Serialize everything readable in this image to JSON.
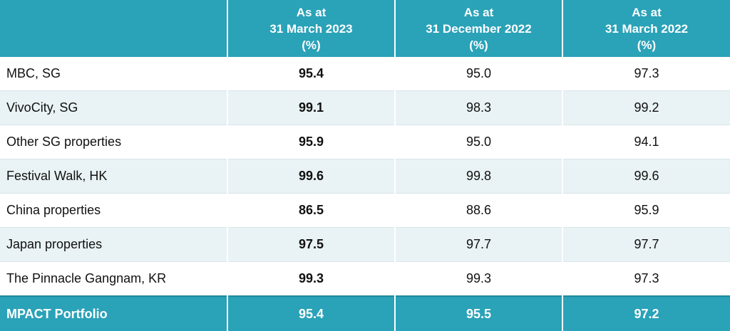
{
  "headers": [
    {
      "line1": "",
      "line2": "",
      "line3": ""
    },
    {
      "line1": "As at",
      "line2": "31 March 2023",
      "line3": "(%)"
    },
    {
      "line1": "As at",
      "line2": "31 December 2022",
      "line3": "(%)"
    },
    {
      "line1": "As at",
      "line2": "31 March 2022",
      "line3": "(%)"
    }
  ],
  "rows": [
    {
      "name": "MBC, SG",
      "mar2023": "95.4",
      "dec2022": "95.0",
      "mar2022": "97.3"
    },
    {
      "name": "VivoCity, SG",
      "mar2023": "99.1",
      "dec2022": "98.3",
      "mar2022": "99.2"
    },
    {
      "name": "Other SG properties",
      "mar2023": "95.9",
      "dec2022": "95.0",
      "mar2022": "94.1"
    },
    {
      "name": "Festival Walk, HK",
      "mar2023": "99.6",
      "dec2022": "99.8",
      "mar2022": "99.6"
    },
    {
      "name": "China properties",
      "mar2023": "86.5",
      "dec2022": "88.6",
      "mar2022": "95.9"
    },
    {
      "name": "Japan properties",
      "mar2023": "97.5",
      "dec2022": "97.7",
      "mar2022": "97.7"
    },
    {
      "name": "The Pinnacle Gangnam, KR",
      "mar2023": "99.3",
      "dec2022": "99.3",
      "mar2022": "97.3"
    }
  ],
  "total": {
    "name": "MPACT Portfolio",
    "mar2023": "95.4",
    "dec2022": "95.5",
    "mar2022": "97.2"
  },
  "colors": {
    "header_bg": "#2aa2b8",
    "stripe_bg": "#e9f2f4",
    "text": "#111111"
  }
}
